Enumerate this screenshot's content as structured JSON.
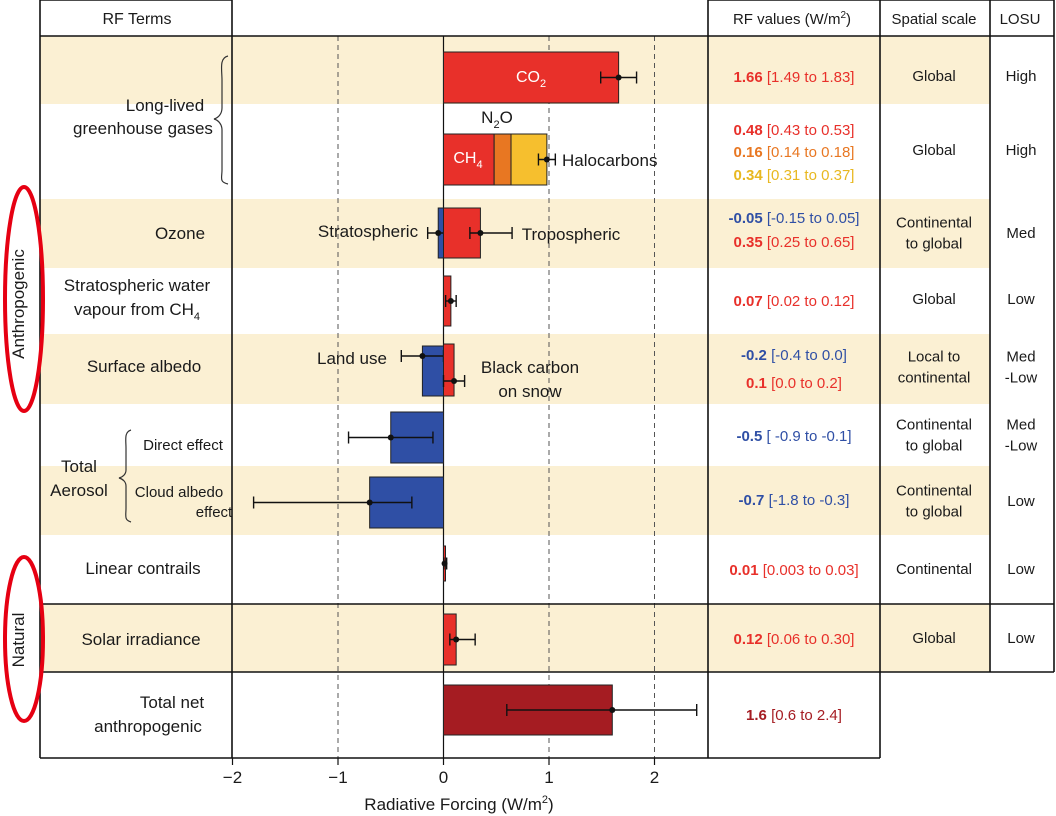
{
  "headers": {
    "rf_terms": "RF Terms",
    "rf_values": "RF values (W/m",
    "rf_values_sup": "2",
    "rf_values_close": ")",
    "spatial_scale": "Spatial scale",
    "losu": "LOSU"
  },
  "groups": {
    "anthropogenic": "Anthropogenic",
    "natural": "Natural",
    "llghg": [
      "Long-lived",
      "greenhouse gases"
    ],
    "total_aerosol": [
      "Total",
      "Aerosol"
    ]
  },
  "rows": [
    {
      "id": "llghg-a",
      "label": [],
      "spatial": [
        "Global"
      ],
      "losu": [
        "High"
      ],
      "values": [
        {
          "main": "1.66",
          "range": "[1.49 to 1.83]",
          "color": "#e8302a"
        }
      ]
    },
    {
      "id": "llghg-b",
      "label": [],
      "spatial": [
        "Global"
      ],
      "losu": [
        "High"
      ],
      "values": [
        {
          "main": "0.48",
          "range": "[0.43 to 0.53]",
          "color": "#e8302a"
        },
        {
          "main": "0.16",
          "range": "[0.14 to 0.18]",
          "color": "#e87722"
        },
        {
          "main": "0.34",
          "range": "[0.31 to 0.37]",
          "color": "#e8b820"
        }
      ]
    },
    {
      "id": "ozone",
      "label": [
        "Ozone"
      ],
      "spatial": [
        "Continental",
        "to global"
      ],
      "losu": [
        "Med"
      ],
      "values": [
        {
          "main": "-0.05",
          "range": "[-0.15 to 0.05]",
          "color": "#2f4fa5"
        },
        {
          "main": "0.35",
          "range": "[0.25 to 0.65]",
          "color": "#e8302a"
        }
      ]
    },
    {
      "id": "strat-water",
      "label": [
        "Stratospheric water",
        "vapour from CH"
      ],
      "label_sub": "4",
      "spatial": [
        "Global"
      ],
      "losu": [
        "Low"
      ],
      "values": [
        {
          "main": "0.07",
          "range": "[0.02 to 0.12]",
          "color": "#e8302a"
        }
      ]
    },
    {
      "id": "surface-albedo",
      "label": [
        "Surface albedo"
      ],
      "spatial": [
        "Local to",
        "continental"
      ],
      "losu": [
        "Med",
        "-Low"
      ],
      "values": [
        {
          "main": "-0.2",
          "range": "[-0.4 to 0.0]",
          "color": "#2f4fa5"
        },
        {
          "main": "0.1",
          "range": "[0.0 to 0.2]",
          "color": "#e8302a"
        }
      ]
    },
    {
      "id": "direct-effect",
      "label": [
        "Direct effect"
      ],
      "spatial": [
        "Continental",
        "to global"
      ],
      "losu": [
        "Med",
        "-Low"
      ],
      "values": [
        {
          "main": "-0.5",
          "range": "[ -0.9 to -0.1]",
          "color": "#2f4fa5"
        }
      ]
    },
    {
      "id": "cloud-albedo",
      "label": [
        "Cloud albedo",
        "effect"
      ],
      "spatial": [
        "Continental",
        "to global"
      ],
      "losu": [
        "Low"
      ],
      "values": [
        {
          "main": "-0.7",
          "range": "[-1.8 to -0.3]",
          "color": "#2f4fa5"
        }
      ]
    },
    {
      "id": "contrails",
      "label": [
        "Linear contrails"
      ],
      "spatial": [
        "Continental"
      ],
      "losu": [
        "Low"
      ],
      "values": [
        {
          "main": "0.01",
          "range": "[0.003 to 0.03]",
          "color": "#e8302a"
        }
      ]
    },
    {
      "id": "solar",
      "label": [
        "Solar irradiance"
      ],
      "spatial": [
        "Global"
      ],
      "losu": [
        "Low"
      ],
      "values": [
        {
          "main": "0.12",
          "range": "[0.06 to 0.30]",
          "color": "#e8302a"
        }
      ]
    },
    {
      "id": "total",
      "label": [
        "Total net",
        "anthropogenic"
      ],
      "spatial": [],
      "losu": [],
      "values": [
        {
          "main": "1.6",
          "range": "[0.6 to 2.4]",
          "color": "#a51c22"
        }
      ]
    }
  ],
  "chart_data": {
    "type": "bar",
    "orientation": "horizontal",
    "title": "",
    "xlabel": "Radiative Forcing (W/m",
    "xlabel_sup": "2",
    "xlabel_close": ")",
    "xlim": [
      -2,
      2.5
    ],
    "xticks": [
      -2,
      -1,
      0,
      1,
      2
    ],
    "xtick_labels": [
      "−2",
      "−1",
      "0",
      "1",
      "2"
    ],
    "grid": "dashed vertical lines at -1, 1, 2; solid line at 0",
    "bars": [
      {
        "row": 0,
        "label": "CO2",
        "start": 0,
        "value": 1.66,
        "low": 1.49,
        "high": 1.83,
        "color": "#e8302a"
      },
      {
        "row": 1,
        "label": "CH4",
        "start": 0,
        "value": 0.48,
        "color": "#e8302a"
      },
      {
        "row": 1,
        "label": "N2O",
        "start": 0.48,
        "value": 0.16,
        "color": "#e87722"
      },
      {
        "row": 1,
        "label": "Halocarbons",
        "start": 0.64,
        "value": 0.34,
        "color": "#f6bf2e",
        "total": 0.98,
        "low": 0.9,
        "high": 1.06
      },
      {
        "row": 2,
        "label": "Stratospheric",
        "start": 0,
        "value": -0.05,
        "low": -0.15,
        "high": 0.05,
        "color": "#2f4fa5"
      },
      {
        "row": 2,
        "label": "Tropospheric",
        "start": 0,
        "value": 0.35,
        "low": 0.25,
        "high": 0.65,
        "color": "#e8302a"
      },
      {
        "row": 3,
        "label": "Stratospheric water vapour from CH4",
        "start": 0,
        "value": 0.07,
        "low": 0.02,
        "high": 0.12,
        "color": "#e8302a"
      },
      {
        "row": 4,
        "label": "Land use",
        "start": 0,
        "value": -0.2,
        "low": -0.4,
        "high": 0.0,
        "color": "#2f4fa5"
      },
      {
        "row": 4,
        "label": "Black carbon on snow",
        "start": 0,
        "value": 0.1,
        "low": 0.0,
        "high": 0.2,
        "color": "#e8302a"
      },
      {
        "row": 5,
        "label": "Direct effect",
        "start": 0,
        "value": -0.5,
        "low": -0.9,
        "high": -0.1,
        "color": "#2f4fa5"
      },
      {
        "row": 6,
        "label": "Cloud albedo effect",
        "start": 0,
        "value": -0.7,
        "low": -1.8,
        "high": -0.3,
        "color": "#2f4fa5"
      },
      {
        "row": 7,
        "label": "Linear contrails",
        "start": 0,
        "value": 0.01,
        "low": 0.003,
        "high": 0.03,
        "color": "#e8302a"
      },
      {
        "row": 8,
        "label": "Solar irradiance",
        "start": 0,
        "value": 0.12,
        "low": 0.06,
        "high": 0.3,
        "color": "#e8302a"
      },
      {
        "row": 9,
        "label": "Total net anthropogenic",
        "start": 0,
        "value": 1.6,
        "low": 0.6,
        "high": 2.4,
        "color": "#a51c22"
      }
    ],
    "bar_labels": {
      "co2": "CO",
      "co2_sub": "2",
      "ch4": "CH",
      "ch4_sub": "4",
      "n2o": "N",
      "n2o_sub": "2",
      "n2o_tail": "O",
      "halocarbons": "Halocarbons",
      "stratospheric": "Stratospheric",
      "tropospheric": "Tropospheric",
      "land_use": "Land use",
      "black_carbon": [
        "Black carbon",
        "on snow"
      ]
    }
  },
  "colors": {
    "band": "#fbf0d3",
    "red": "#e8302a",
    "orange": "#e87722",
    "yellow": "#f6bf2e",
    "blue": "#2f4fa5",
    "dark_red": "#a51c22",
    "highlight_ring": "#e60012"
  }
}
